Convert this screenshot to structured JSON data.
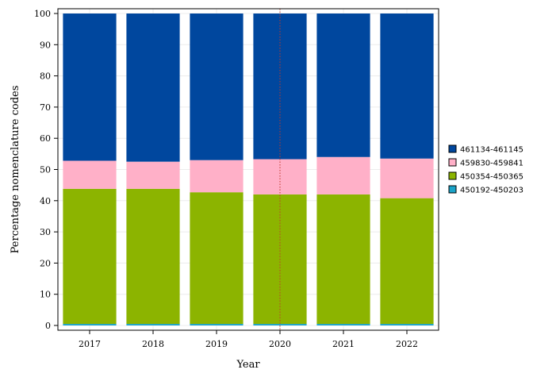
{
  "chart_data": {
    "type": "bar",
    "stacked": true,
    "categories": [
      "2017",
      "2018",
      "2019",
      "2020",
      "2021",
      "2022"
    ],
    "series": [
      {
        "name": "450192-450203",
        "color": "#1aa3c8",
        "values": [
          0.5,
          0.5,
          0.5,
          0.5,
          0.5,
          0.5
        ]
      },
      {
        "name": "450354-450365",
        "color": "#8cb400",
        "values": [
          43.3,
          43.3,
          42.2,
          41.5,
          41.5,
          40.3
        ]
      },
      {
        "name": "459830-459841",
        "color": "#ffb0c8",
        "values": [
          9.0,
          8.7,
          10.3,
          11.3,
          12.0,
          12.7
        ]
      },
      {
        "name": "461134-461145",
        "color": "#00479e",
        "values": [
          47.2,
          47.5,
          47.0,
          46.7,
          46.0,
          46.5
        ]
      }
    ],
    "legend_order": [
      "461134-461145",
      "459830-459841",
      "450354-450365",
      "450192-450203"
    ],
    "xlabel": "Year",
    "ylabel": "Percentage nomenclature codes",
    "ylim": [
      0,
      100
    ],
    "yticks": [
      0,
      10,
      20,
      30,
      40,
      50,
      60,
      70,
      80,
      90,
      100
    ],
    "reference_line": {
      "x": "2020",
      "style": "dotted",
      "color": "#c0392b"
    },
    "grid": true,
    "legend_position": "right"
  }
}
